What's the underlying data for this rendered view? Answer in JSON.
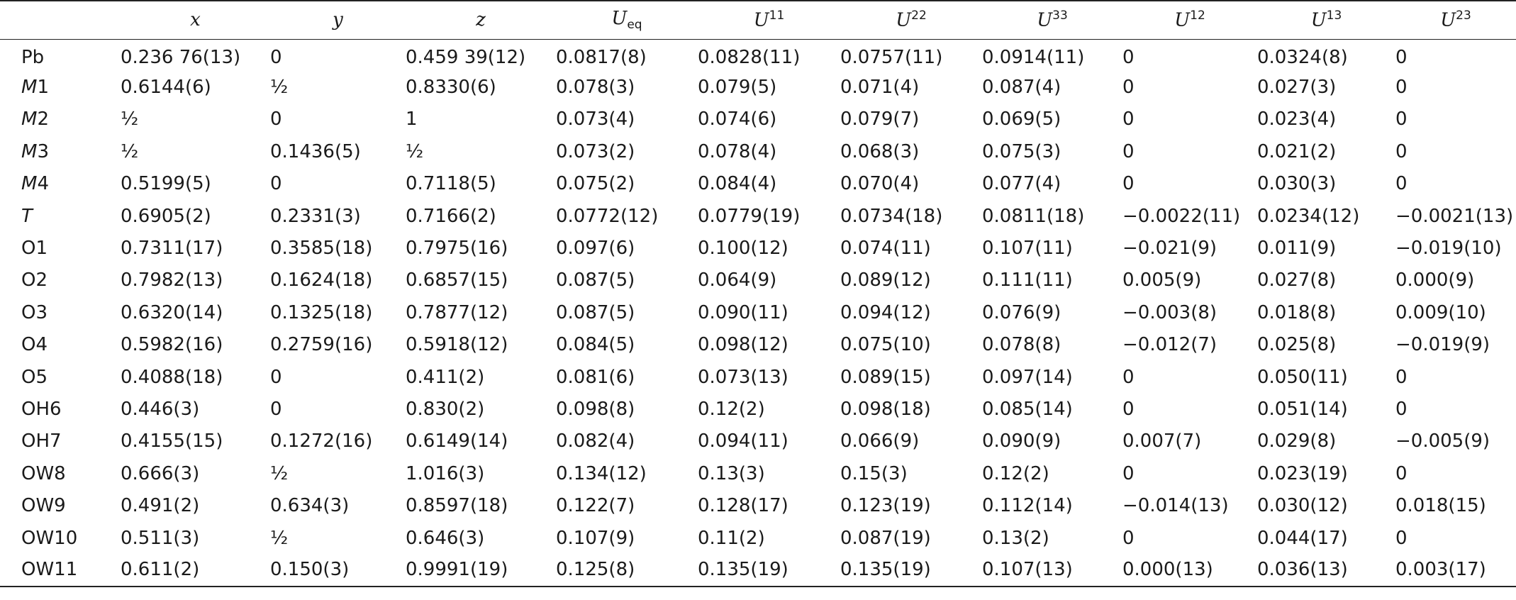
{
  "header": {
    "site": "",
    "x": "x",
    "y": "y",
    "z": "z",
    "ueq_base": "U",
    "ueq_sub": "eq",
    "u_base": "U",
    "u11_sup": "11",
    "u22_sup": "22",
    "u33_sup": "33",
    "u12_sup": "12",
    "u13_sup": "13",
    "u23_sup": "23"
  },
  "rows": [
    {
      "site_prefix": "",
      "site_main": "Pb",
      "italic": false,
      "x": "0.236 76(13)",
      "y": "0",
      "z": "0.459 39(12)",
      "ueq": "0.0817(8)",
      "u11": "0.0828(11)",
      "u22": "0.0757(11)",
      "u33": "0.0914(11)",
      "u12": "0",
      "u13": "0.0324(8)",
      "u23": "0"
    },
    {
      "site_prefix": "M",
      "site_main": "1",
      "italic": true,
      "x": "0.6144(6)",
      "y": "½",
      "z": "0.8330(6)",
      "ueq": "0.078(3)",
      "u11": "0.079(5)",
      "u22": "0.071(4)",
      "u33": "0.087(4)",
      "u12": "0",
      "u13": "0.027(3)",
      "u23": "0"
    },
    {
      "site_prefix": "M",
      "site_main": "2",
      "italic": true,
      "x": "½",
      "y": "0",
      "z": "1",
      "ueq": "0.073(4)",
      "u11": "0.074(6)",
      "u22": "0.079(7)",
      "u33": "0.069(5)",
      "u12": "0",
      "u13": "0.023(4)",
      "u23": "0"
    },
    {
      "site_prefix": "M",
      "site_main": "3",
      "italic": true,
      "x": "½",
      "y": "0.1436(5)",
      "z": "½",
      "ueq": "0.073(2)",
      "u11": "0.078(4)",
      "u22": "0.068(3)",
      "u33": "0.075(3)",
      "u12": "0",
      "u13": "0.021(2)",
      "u23": "0"
    },
    {
      "site_prefix": "M",
      "site_main": "4",
      "italic": true,
      "x": "0.5199(5)",
      "y": "0",
      "z": "0.7118(5)",
      "ueq": "0.075(2)",
      "u11": "0.084(4)",
      "u22": "0.070(4)",
      "u33": "0.077(4)",
      "u12": "0",
      "u13": "0.030(3)",
      "u23": "0"
    },
    {
      "site_prefix": "T",
      "site_main": "",
      "italic": true,
      "x": "0.6905(2)",
      "y": "0.2331(3)",
      "z": "0.7166(2)",
      "ueq": "0.0772(12)",
      "u11": "0.0779(19)",
      "u22": "0.0734(18)",
      "u33": "0.0811(18)",
      "u12": "−0.0022(11)",
      "u13": "0.0234(12)",
      "u23": "−0.0021(13)"
    },
    {
      "site_prefix": "",
      "site_main": "O1",
      "italic": false,
      "x": "0.7311(17)",
      "y": "0.3585(18)",
      "z": "0.7975(16)",
      "ueq": "0.097(6)",
      "u11": "0.100(12)",
      "u22": "0.074(11)",
      "u33": "0.107(11)",
      "u12": "−0.021(9)",
      "u13": "0.011(9)",
      "u23": "−0.019(10)"
    },
    {
      "site_prefix": "",
      "site_main": "O2",
      "italic": false,
      "x": "0.7982(13)",
      "y": "0.1624(18)",
      "z": "0.6857(15)",
      "ueq": "0.087(5)",
      "u11": "0.064(9)",
      "u22": "0.089(12)",
      "u33": "0.111(11)",
      "u12": "0.005(9)",
      "u13": "0.027(8)",
      "u23": "0.000(9)"
    },
    {
      "site_prefix": "",
      "site_main": "O3",
      "italic": false,
      "x": "0.6320(14)",
      "y": "0.1325(18)",
      "z": "0.7877(12)",
      "ueq": "0.087(5)",
      "u11": "0.090(11)",
      "u22": "0.094(12)",
      "u33": "0.076(9)",
      "u12": "−0.003(8)",
      "u13": "0.018(8)",
      "u23": "0.009(10)"
    },
    {
      "site_prefix": "",
      "site_main": "O4",
      "italic": false,
      "x": "0.5982(16)",
      "y": "0.2759(16)",
      "z": "0.5918(12)",
      "ueq": "0.084(5)",
      "u11": "0.098(12)",
      "u22": "0.075(10)",
      "u33": "0.078(8)",
      "u12": "−0.012(7)",
      "u13": "0.025(8)",
      "u23": "−0.019(9)"
    },
    {
      "site_prefix": "",
      "site_main": "O5",
      "italic": false,
      "x": "0.4088(18)",
      "y": "0",
      "z": "0.411(2)",
      "ueq": "0.081(6)",
      "u11": "0.073(13)",
      "u22": "0.089(15)",
      "u33": "0.097(14)",
      "u12": "0",
      "u13": "0.050(11)",
      "u23": "0"
    },
    {
      "site_prefix": "",
      "site_main": "OH6",
      "italic": false,
      "x": "0.446(3)",
      "y": "0",
      "z": "0.830(2)",
      "ueq": "0.098(8)",
      "u11": "0.12(2)",
      "u22": "0.098(18)",
      "u33": "0.085(14)",
      "u12": "0",
      "u13": "0.051(14)",
      "u23": "0"
    },
    {
      "site_prefix": "",
      "site_main": "OH7",
      "italic": false,
      "x": "0.4155(15)",
      "y": "0.1272(16)",
      "z": "0.6149(14)",
      "ueq": "0.082(4)",
      "u11": "0.094(11)",
      "u22": "0.066(9)",
      "u33": "0.090(9)",
      "u12": "0.007(7)",
      "u13": "0.029(8)",
      "u23": "−0.005(9)"
    },
    {
      "site_prefix": "",
      "site_main": "OW8",
      "italic": false,
      "x": "0.666(3)",
      "y": "½",
      "z": "1.016(3)",
      "ueq": "0.134(12)",
      "u11": "0.13(3)",
      "u22": "0.15(3)",
      "u33": "0.12(2)",
      "u12": "0",
      "u13": "0.023(19)",
      "u23": "0"
    },
    {
      "site_prefix": "",
      "site_main": "OW9",
      "italic": false,
      "x": "0.491(2)",
      "y": "0.634(3)",
      "z": "0.8597(18)",
      "ueq": "0.122(7)",
      "u11": "0.128(17)",
      "u22": "0.123(19)",
      "u33": "0.112(14)",
      "u12": "−0.014(13)",
      "u13": "0.030(12)",
      "u23": "0.018(15)"
    },
    {
      "site_prefix": "",
      "site_main": "OW10",
      "italic": false,
      "x": "0.511(3)",
      "y": "½",
      "z": "0.646(3)",
      "ueq": "0.107(9)",
      "u11": "0.11(2)",
      "u22": "0.087(19)",
      "u33": "0.13(2)",
      "u12": "0",
      "u13": "0.044(17)",
      "u23": "0"
    },
    {
      "site_prefix": "",
      "site_main": "OW11",
      "italic": false,
      "x": "0.611(2)",
      "y": "0.150(3)",
      "z": "0.9991(19)",
      "ueq": "0.125(8)",
      "u11": "0.135(19)",
      "u22": "0.135(19)",
      "u33": "0.107(13)",
      "u12": "0.000(13)",
      "u13": "0.036(13)",
      "u23": "0.003(17)"
    }
  ]
}
